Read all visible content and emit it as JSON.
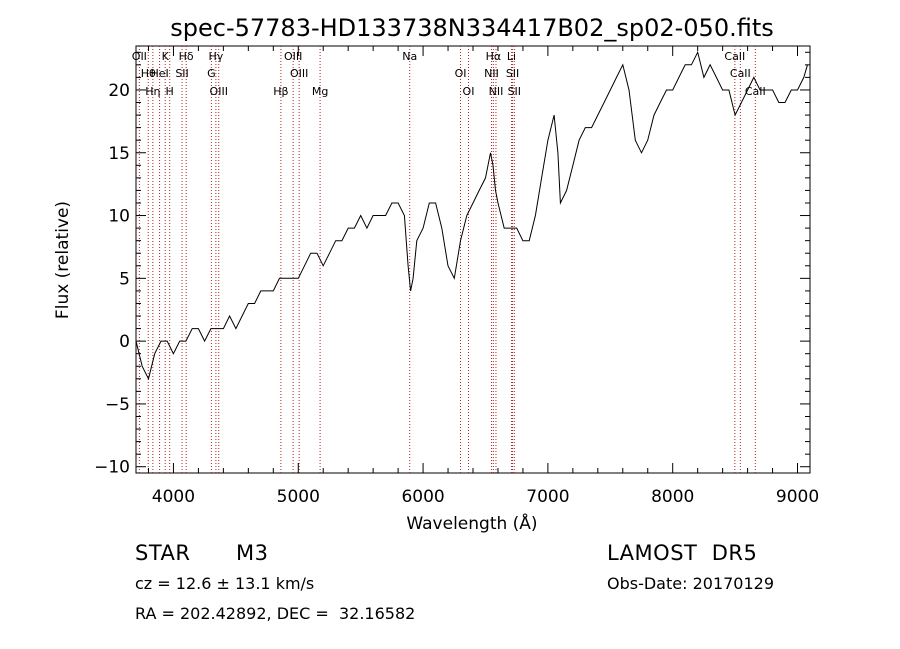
{
  "chart_data": {
    "type": "line",
    "title": "spec-57783-HD133738N334417B02_sp02-050.fits",
    "xlabel": "Wavelength (Å)",
    "ylabel": "Flux (relative)",
    "xlim": [
      3700,
      9100
    ],
    "ylim": [
      -10.5,
      23.5
    ],
    "x_ticks": [
      "4000",
      "5000",
      "6000",
      "7000",
      "8000",
      "9000"
    ],
    "y_ticks": [
      "-10",
      "-5",
      "0",
      "5",
      "10",
      "15",
      "20"
    ],
    "grid": false,
    "series": [
      {
        "x": [
          3700,
          3750,
          3800,
          3850,
          3900,
          3950,
          4000,
          4050,
          4100,
          4150,
          4200,
          4250,
          4300,
          4350,
          4400,
          4450,
          4500,
          4550,
          4600,
          4650,
          4700,
          4750,
          4800,
          4850,
          4900,
          4950,
          5000,
          5050,
          5100,
          5150,
          5200,
          5250,
          5300,
          5350,
          5400,
          5450,
          5500,
          5550,
          5600,
          5650,
          5700,
          5750,
          5800,
          5850,
          5880,
          5900,
          5920,
          5950,
          6000,
          6050,
          6100,
          6150,
          6200,
          6250,
          6300,
          6350,
          6400,
          6450,
          6500,
          6520,
          6540,
          6560,
          6580,
          6600,
          6650,
          6700,
          6750,
          6800,
          6850,
          6900,
          6950,
          7000,
          7050,
          7080,
          7100,
          7150,
          7200,
          7250,
          7300,
          7350,
          7400,
          7450,
          7500,
          7550,
          7600,
          7650,
          7700,
          7750,
          7800,
          7850,
          7900,
          7950,
          8000,
          8050,
          8100,
          8150,
          8200,
          8250,
          8300,
          8350,
          8400,
          8450,
          8500,
          8550,
          8600,
          8650,
          8700,
          8750,
          8800,
          8850,
          8900,
          8950,
          9000,
          9050,
          9080
        ],
        "y": [
          0,
          -2,
          -3,
          -1,
          0,
          0,
          -1,
          0,
          0,
          1,
          1,
          0,
          1,
          1,
          1,
          2,
          1,
          2,
          3,
          3,
          4,
          4,
          4,
          5,
          5,
          5,
          5,
          6,
          7,
          7,
          6,
          7,
          8,
          8,
          9,
          9,
          10,
          9,
          10,
          10,
          10,
          11,
          11,
          10,
          6,
          4,
          5,
          8,
          9,
          11,
          11,
          9,
          6,
          5,
          8,
          10,
          11,
          12,
          13,
          14,
          15,
          14,
          12,
          11,
          9,
          9,
          9,
          8,
          8,
          10,
          13,
          16,
          18,
          15,
          11,
          12,
          14,
          16,
          17,
          17,
          18,
          19,
          20,
          21,
          22,
          20,
          16,
          15,
          16,
          18,
          19,
          20,
          20,
          21,
          22,
          22,
          23,
          21,
          22,
          21,
          20,
          20,
          18,
          19,
          20,
          21,
          20,
          20,
          20,
          19,
          19,
          20,
          20,
          21,
          22
        ]
      }
    ],
    "spectral_lines": [
      {
        "label": "OII",
        "x": 3727
      },
      {
        "label": "Hθ",
        "x": 3798
      },
      {
        "label": "Hη",
        "x": 3835
      },
      {
        "label": "K",
        "x": 3934
      },
      {
        "label": "HeI",
        "x": 3889
      },
      {
        "label": "H",
        "x": 3970
      },
      {
        "label": "Hδ",
        "x": 4102
      },
      {
        "label": "SII",
        "x": 4069
      },
      {
        "label": "OIII",
        "x": 4363
      },
      {
        "label": "Hγ",
        "x": 4340
      },
      {
        "label": "G",
        "x": 4304
      },
      {
        "label": "Hβ",
        "x": 4861
      },
      {
        "label": "OIII",
        "x": 4959
      },
      {
        "label": "OIII",
        "x": 5007
      },
      {
        "label": "Mg",
        "x": 5175
      },
      {
        "label": "Na",
        "x": 5893
      },
      {
        "label": "OI",
        "x": 6300
      },
      {
        "label": "OI",
        "x": 6364
      },
      {
        "label": "Hα",
        "x": 6563
      },
      {
        "label": "NII",
        "x": 6548
      },
      {
        "label": "NII",
        "x": 6584
      },
      {
        "label": "Li",
        "x": 6708
      },
      {
        "label": "SII",
        "x": 6717
      },
      {
        "label": "SII",
        "x": 6731
      },
      {
        "label": "CaII",
        "x": 8498
      },
      {
        "label": "CaII",
        "x": 8542
      },
      {
        "label": "CaII",
        "x": 8662
      }
    ]
  },
  "info": {
    "class_label": "STAR",
    "subclass": "M3",
    "survey": "LAMOST  DR5",
    "cz": "cz = 12.6 ± 13.1 km/s",
    "obs_date": "Obs-Date: 20170129",
    "radec": "RA = 202.42892, DEC =  32.16582"
  }
}
